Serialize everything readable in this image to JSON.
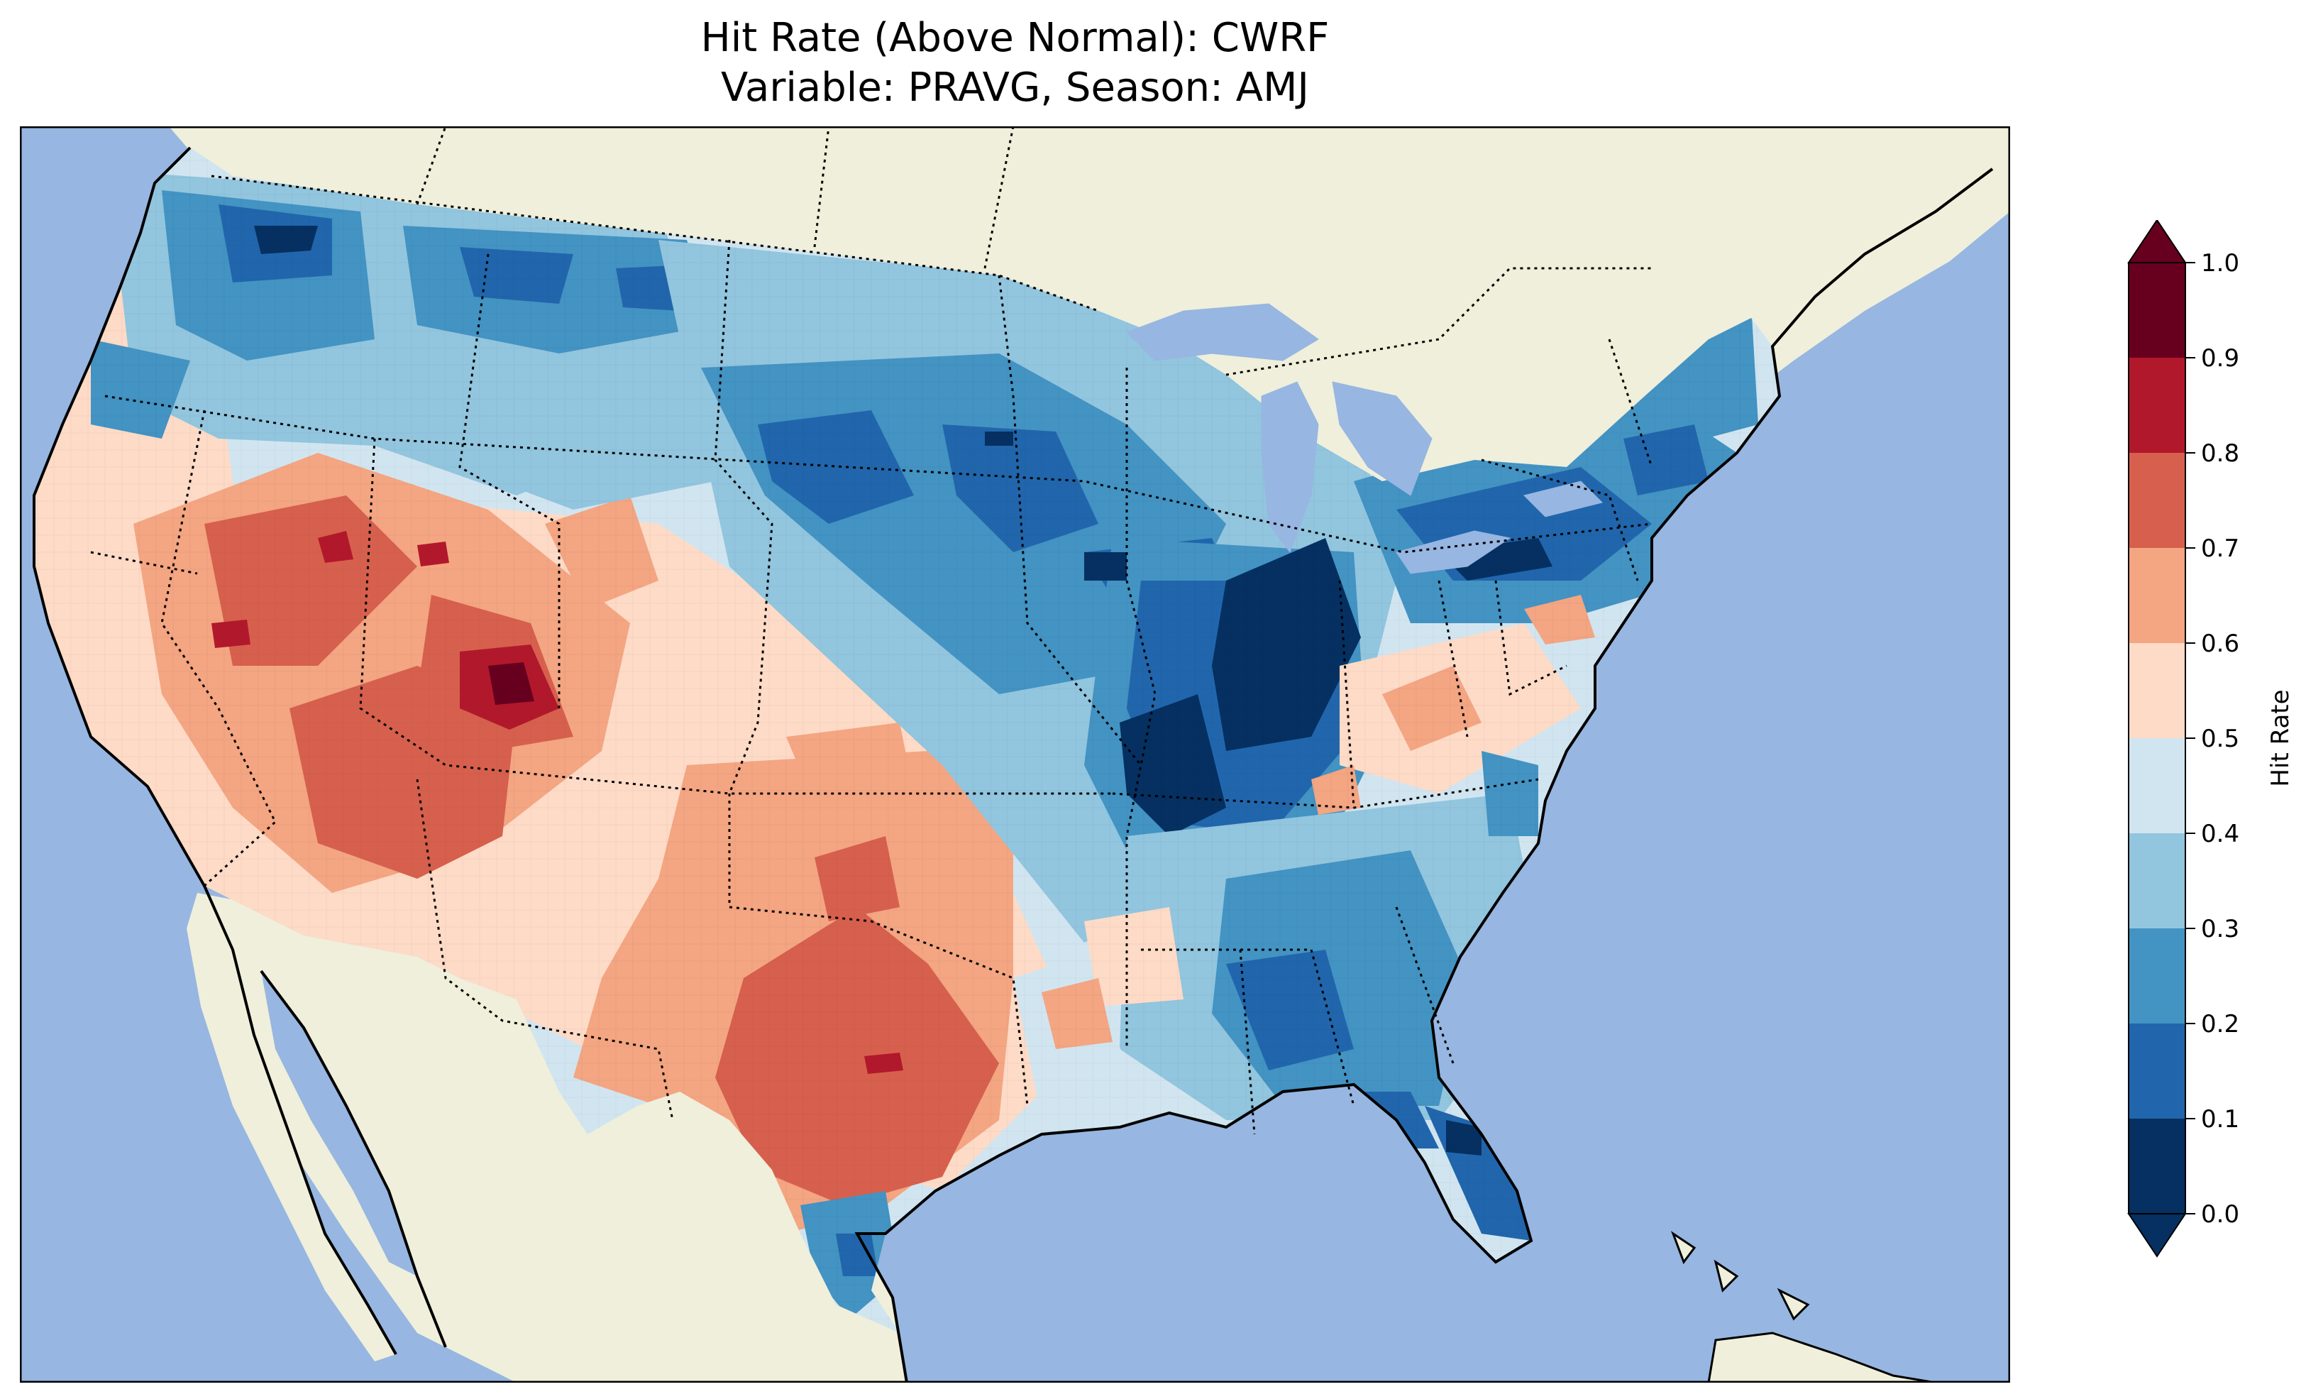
{
  "title": {
    "line1": "Hit Rate (Above Normal): CWRF",
    "line2": "Variable: PRAVG, Season: AMJ"
  },
  "colorbar": {
    "label": "Hit Rate",
    "ticks": [
      "0.0",
      "0.1",
      "0.2",
      "0.3",
      "0.4",
      "0.5",
      "0.6",
      "0.7",
      "0.8",
      "0.9",
      "1.0"
    ],
    "colors": [
      "#053061",
      "#2166ac",
      "#4393c3",
      "#92c5de",
      "#d1e5f0",
      "#fddbc7",
      "#f4a582",
      "#d6604d",
      "#b2182b",
      "#67001f"
    ],
    "extend": "both"
  },
  "map": {
    "ocean_color": "#97b6e1",
    "land_color": "#efefdb",
    "lake_color": "#97b6e1",
    "region": "Contiguous United States with parts of Canada and Mexico",
    "border_style": "dotted state boundaries, solid coastlines"
  }
}
